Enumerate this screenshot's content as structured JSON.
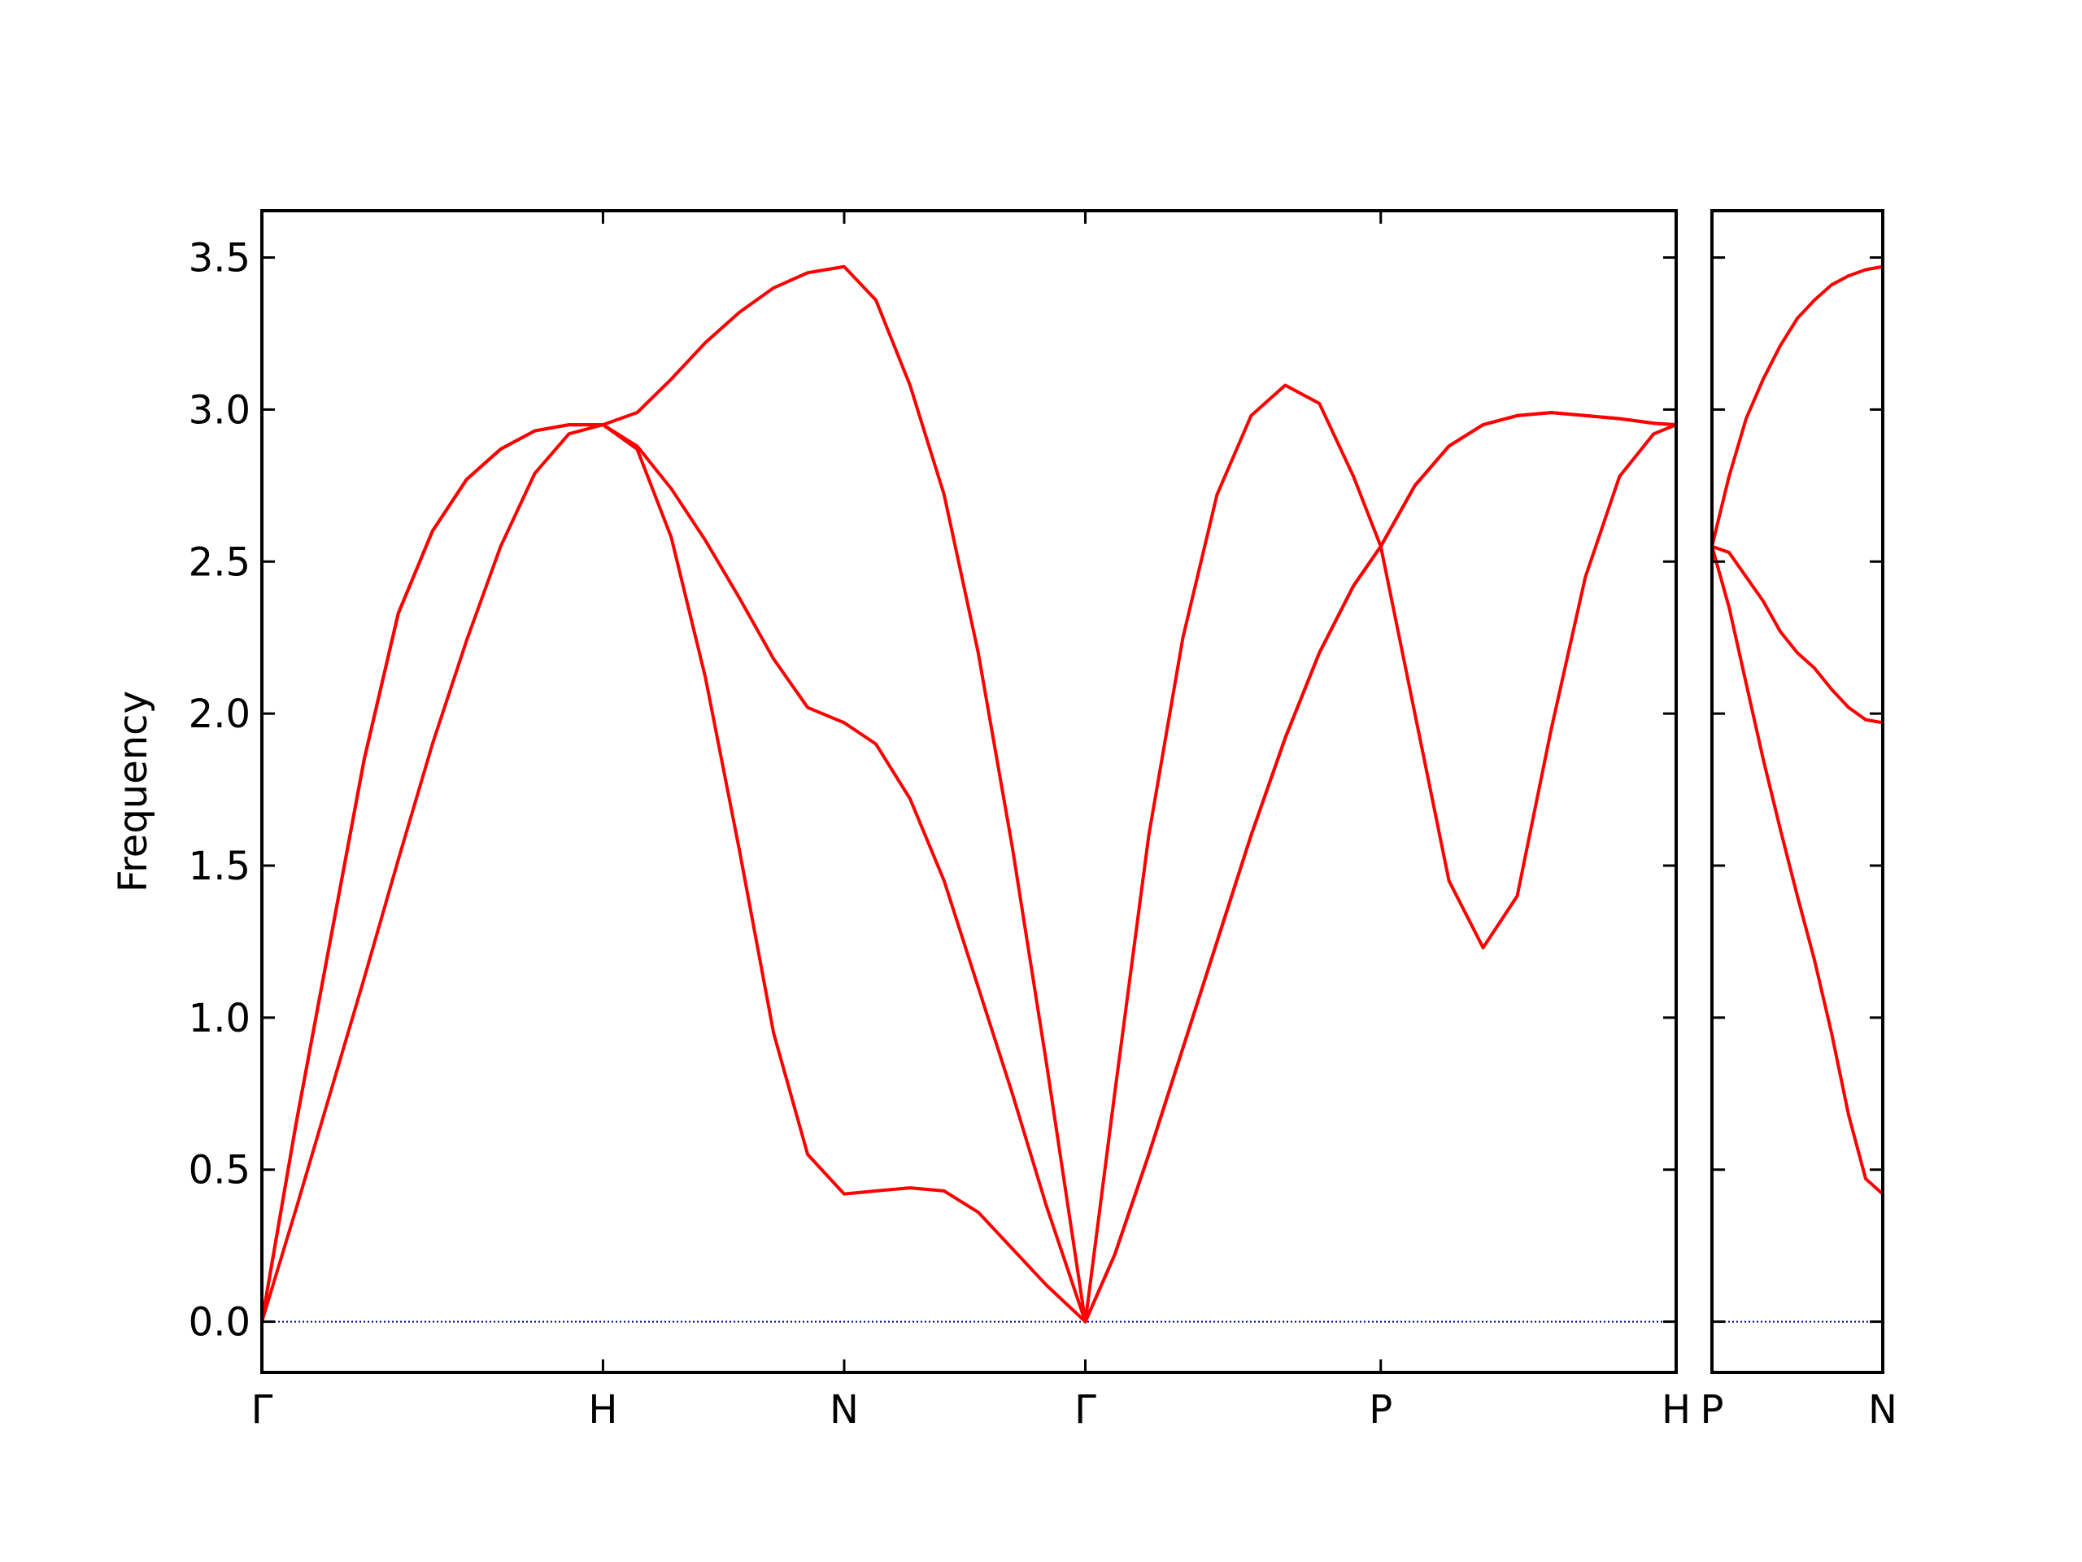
{
  "chart_data": [
    {
      "type": "line",
      "ylabel": "Frequency",
      "x": [
        0,
        0.1,
        0.2,
        0.3,
        0.4,
        0.5,
        0.6,
        0.7,
        0.8,
        0.9,
        1.0,
        1.1,
        1.2,
        1.3,
        1.4,
        1.5,
        1.6,
        1.707,
        1.8,
        1.9,
        2.0,
        2.1,
        2.2,
        2.3,
        2.414,
        2.5,
        2.6,
        2.7,
        2.8,
        2.9,
        3.0,
        3.1,
        3.2,
        3.28,
        3.38,
        3.48,
        3.58,
        3.68,
        3.78,
        3.88,
        3.98,
        4.08,
        4.146
      ],
      "series": [
        {
          "color": "#ff0000",
          "values": [
            0,
            0.37,
            0.75,
            1.13,
            1.52,
            1.9,
            2.24,
            2.55,
            2.79,
            2.92,
            2.95,
            2.87,
            2.58,
            2.12,
            1.55,
            0.95,
            0.55,
            0.42,
            0.43,
            0.44,
            0.43,
            0.36,
            0.24,
            0.12,
            0,
            0.22,
            0.55,
            0.9,
            1.25,
            1.6,
            1.92,
            2.2,
            2.42,
            2.55,
            2.0,
            1.45,
            1.23,
            1.4,
            1.95,
            2.45,
            2.78,
            2.92,
            2.95
          ]
        },
        {
          "color": "#ff0000",
          "values": [
            0,
            0.65,
            1.25,
            1.85,
            2.33,
            2.6,
            2.77,
            2.87,
            2.93,
            2.95,
            2.95,
            2.88,
            2.74,
            2.57,
            2.38,
            2.18,
            2.02,
            1.97,
            1.9,
            1.72,
            1.45,
            1.1,
            0.75,
            0.38,
            0,
            0.22,
            0.55,
            0.9,
            1.25,
            1.6,
            1.92,
            2.2,
            2.42,
            2.55,
            2.75,
            2.88,
            2.95,
            2.98,
            2.99,
            2.98,
            2.97,
            2.955,
            2.95
          ]
        },
        {
          "color": "#ff0000",
          "values": [
            0,
            0.65,
            1.25,
            1.85,
            2.33,
            2.6,
            2.77,
            2.87,
            2.93,
            2.95,
            2.95,
            2.99,
            3.1,
            3.22,
            3.32,
            3.4,
            3.45,
            3.47,
            3.36,
            3.08,
            2.72,
            2.2,
            1.56,
            0.85,
            0,
            0.75,
            1.6,
            2.25,
            2.72,
            2.98,
            3.08,
            3.02,
            2.78,
            2.55,
            2.75,
            2.88,
            2.95,
            2.98,
            2.99,
            2.98,
            2.97,
            2.955,
            2.95
          ]
        }
      ],
      "reference_line": {
        "value": 0,
        "color": "#00008b"
      },
      "xlim": [
        0,
        4.146
      ],
      "xticks": [
        {
          "value": 0,
          "label": "Γ"
        },
        {
          "value": 1.0,
          "label": "H"
        },
        {
          "value": 1.707,
          "label": "N"
        },
        {
          "value": 2.414,
          "label": "Γ"
        },
        {
          "value": 3.28,
          "label": "P"
        },
        {
          "value": 4.146,
          "label": "H"
        }
      ],
      "ylim": [
        -0.167,
        3.654
      ],
      "yticks": [
        {
          "value": 0,
          "label": "0.0"
        },
        0.5,
        {
          "value": 1,
          "label": "1.0"
        },
        1.5,
        {
          "value": 2,
          "label": "2.0"
        },
        2.5,
        {
          "value": 3,
          "label": "3.0"
        },
        3.5
      ],
      "ytick_labels_visible": true
    },
    {
      "type": "line",
      "x": [
        0,
        0.05,
        0.1,
        0.15,
        0.2,
        0.25,
        0.3,
        0.35,
        0.4,
        0.45,
        0.5
      ],
      "series": [
        {
          "color": "#ff0000",
          "values": [
            2.55,
            2.35,
            2.1,
            1.85,
            1.62,
            1.4,
            1.19,
            0.95,
            0.68,
            0.47,
            0.42
          ]
        },
        {
          "color": "#ff0000",
          "values": [
            2.55,
            2.53,
            2.45,
            2.37,
            2.27,
            2.2,
            2.15,
            2.08,
            2.02,
            1.98,
            1.97
          ]
        },
        {
          "color": "#ff0000",
          "values": [
            2.55,
            2.78,
            2.97,
            3.1,
            3.21,
            3.3,
            3.36,
            3.41,
            3.44,
            3.46,
            3.47
          ]
        }
      ],
      "reference_line": {
        "value": 0,
        "color": "#00008b"
      },
      "xlim": [
        0,
        0.5
      ],
      "xticks": [
        {
          "value": 0,
          "label": "P"
        },
        {
          "value": 0.5,
          "label": "N"
        }
      ],
      "ylim": [
        -0.167,
        3.654
      ],
      "yticks": [
        0,
        0.5,
        1,
        1.5,
        2,
        2.5,
        3,
        3.5
      ],
      "ytick_labels_visible": false
    }
  ]
}
